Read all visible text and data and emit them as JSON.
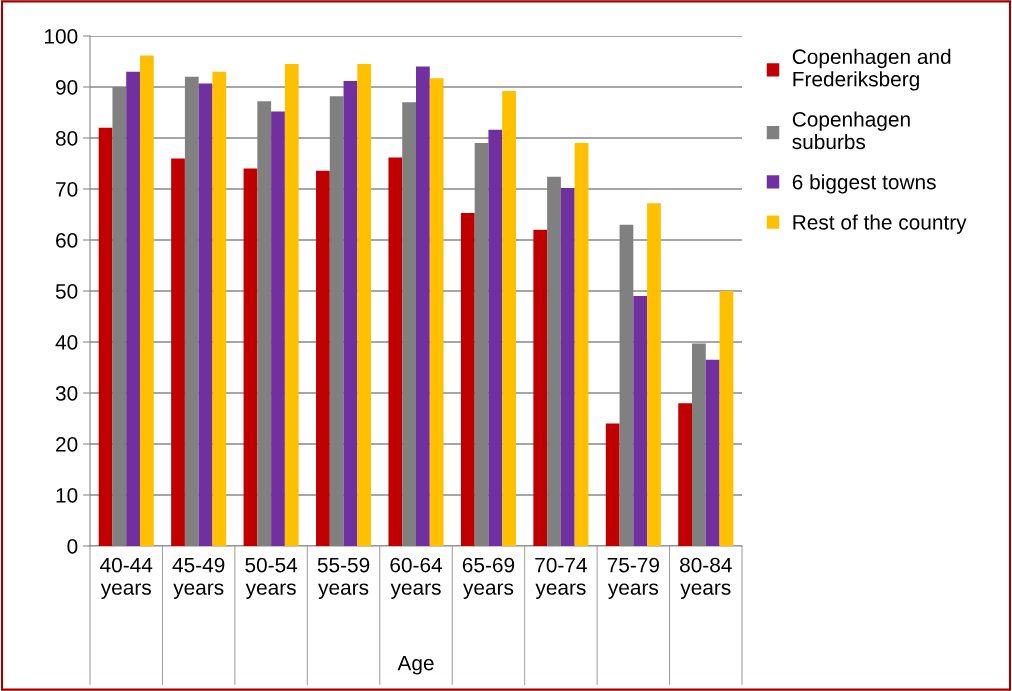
{
  "chart_data": {
    "type": "bar",
    "xlabel": "Age",
    "categories": [
      "40-44\nyears",
      "45-49\nyears",
      "50-54\nyears",
      "55-59\nyears",
      "60-64\nyears",
      "65-69\nyears",
      "70-74\nyears",
      "75-79\nyears",
      "80-84\nyears"
    ],
    "series": [
      {
        "name": "Copenhagen and\nFrederiksberg",
        "color": "#c00000",
        "values": [
          82,
          76,
          74,
          73.6,
          76.2,
          65.3,
          62,
          24,
          28
        ]
      },
      {
        "name": "Copenhagen\nsuburbs",
        "color": "#808080",
        "values": [
          90,
          92,
          87.2,
          88.2,
          87,
          79,
          72.4,
          63,
          39.7
        ]
      },
      {
        "name": "6 biggest towns",
        "color": "#7030a0",
        "values": [
          93,
          90.7,
          85.2,
          91.2,
          94,
          81.6,
          70.2,
          49,
          36.5
        ]
      },
      {
        "name": "Rest of the country",
        "color": "#ffc000",
        "values": [
          96.2,
          93,
          94.5,
          94.5,
          91.7,
          89.2,
          79,
          67.2,
          50
        ]
      }
    ],
    "ylim": [
      0,
      100
    ],
    "yticks": [
      0,
      10,
      20,
      30,
      40,
      50,
      60,
      70,
      80,
      90,
      100
    ],
    "grid": "y",
    "legend": "right"
  }
}
